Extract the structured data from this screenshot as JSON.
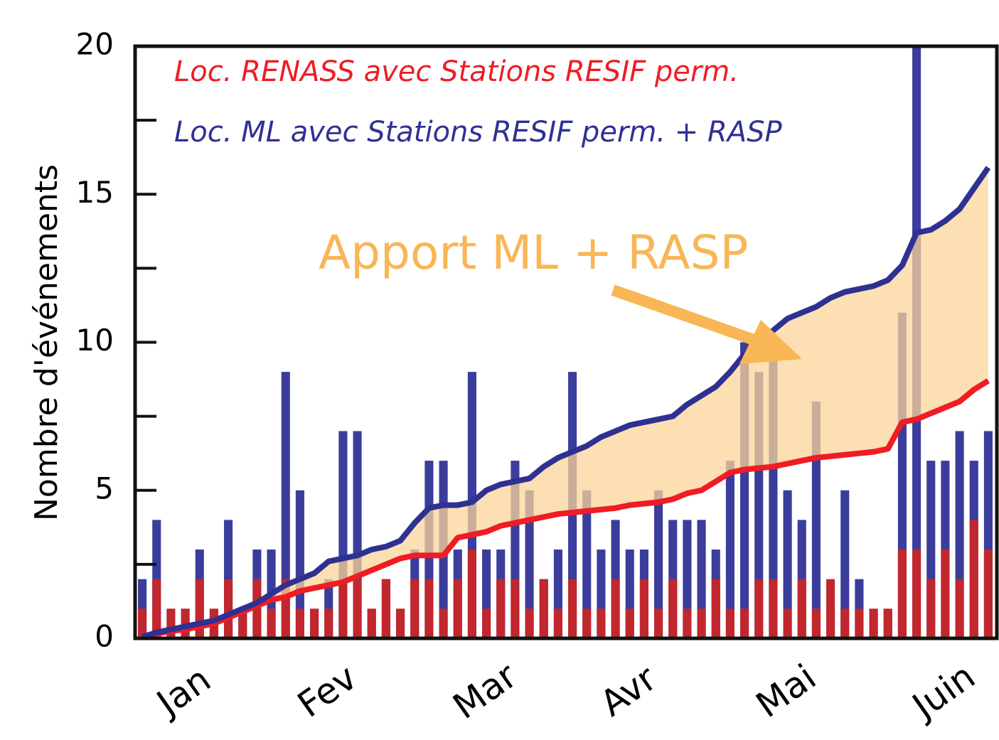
{
  "chart_data": {
    "type": "bar",
    "y_label": "Nombre d'événements",
    "annotation": "Apport ML + RASP",
    "annotation_color": "#f9b655",
    "area_color": "#fbd49a",
    "categories": [
      null,
      null,
      null,
      "Jan",
      null,
      null,
      null,
      null,
      null,
      null,
      null,
      null,
      null,
      "Fev",
      null,
      null,
      null,
      null,
      null,
      null,
      null,
      null,
      null,
      null,
      "Mar",
      null,
      null,
      null,
      null,
      null,
      null,
      null,
      null,
      null,
      "Avr",
      null,
      null,
      null,
      null,
      null,
      null,
      null,
      null,
      null,
      null,
      "Mai",
      null,
      null,
      null,
      null,
      null,
      null,
      null,
      null,
      null,
      null,
      "Juin",
      null,
      null,
      null
    ],
    "series": [
      {
        "name": "Loc. RENASS avec Stations RESIF perm.",
        "type": "line",
        "color": "#ef1c24",
        "values": [
          0.05,
          0.15,
          0.25,
          0.3,
          0.4,
          0.5,
          0.7,
          0.9,
          1.1,
          1.3,
          1.4,
          1.6,
          1.7,
          1.8,
          1.9,
          2.1,
          2.3,
          2.5,
          2.7,
          2.8,
          2.8,
          2.8,
          3.4,
          3.5,
          3.6,
          3.8,
          3.9,
          4.0,
          4.1,
          4.2,
          4.25,
          4.3,
          4.35,
          4.4,
          4.5,
          4.55,
          4.6,
          4.7,
          4.9,
          5.0,
          5.3,
          5.6,
          5.7,
          5.75,
          5.8,
          5.9,
          6.0,
          6.1,
          6.15,
          6.2,
          6.25,
          6.3,
          6.4,
          7.3,
          7.4,
          7.6,
          7.8,
          8.0,
          8.4,
          8.7
        ]
      },
      {
        "name": "Loc. ML avec Stations RESIF perm. + RASP",
        "type": "line",
        "color": "#2e3192",
        "values": [
          0.05,
          0.2,
          0.3,
          0.4,
          0.5,
          0.6,
          0.8,
          1.0,
          1.2,
          1.5,
          1.8,
          2.0,
          2.2,
          2.6,
          2.7,
          2.8,
          3.0,
          3.1,
          3.3,
          3.9,
          4.4,
          4.5,
          4.5,
          4.6,
          5.0,
          5.2,
          5.3,
          5.4,
          5.8,
          6.1,
          6.3,
          6.5,
          6.8,
          7.0,
          7.2,
          7.3,
          7.4,
          7.5,
          7.9,
          8.2,
          8.5,
          9.0,
          9.6,
          10.0,
          10.4,
          10.8,
          11.0,
          11.2,
          11.5,
          11.7,
          11.8,
          11.9,
          12.1,
          12.6,
          13.7,
          13.8,
          14.1,
          14.5,
          15.2,
          15.9
        ]
      },
      {
        "type": "bar",
        "color": "#3a3d9c",
        "values": [
          2,
          4,
          1,
          1,
          3,
          1,
          4,
          1,
          3,
          3,
          9,
          5,
          1,
          2,
          7,
          7,
          1,
          2,
          1,
          3,
          6,
          6,
          3,
          9,
          3,
          3,
          6,
          5,
          2,
          3,
          9,
          5,
          3,
          4,
          3,
          3,
          5,
          4,
          4,
          4,
          3,
          6,
          10,
          9,
          10,
          5,
          4,
          8,
          1,
          5,
          2,
          1,
          1,
          11,
          20,
          6,
          6,
          7,
          6,
          7
        ]
      },
      {
        "type": "bar",
        "color": "#c1272d",
        "values": [
          1,
          2,
          1,
          1,
          2,
          1,
          2,
          1,
          2,
          1,
          2,
          1,
          1,
          1,
          2,
          2,
          1,
          2,
          1,
          2,
          2,
          1,
          2,
          3,
          1,
          2,
          2,
          1,
          2,
          1,
          2,
          1,
          1,
          2,
          1,
          2,
          1,
          2,
          1,
          1,
          2,
          1,
          1,
          2,
          2,
          1,
          2,
          1,
          2,
          1,
          1,
          1,
          1,
          3,
          3,
          2,
          3,
          2,
          4,
          3
        ]
      }
    ],
    "ylim": [
      0,
      20
    ],
    "yticks": [
      0,
      5,
      10,
      15,
      20
    ],
    "minor_yticks": [
      2.5,
      7.5,
      12.5,
      17.5
    ]
  }
}
